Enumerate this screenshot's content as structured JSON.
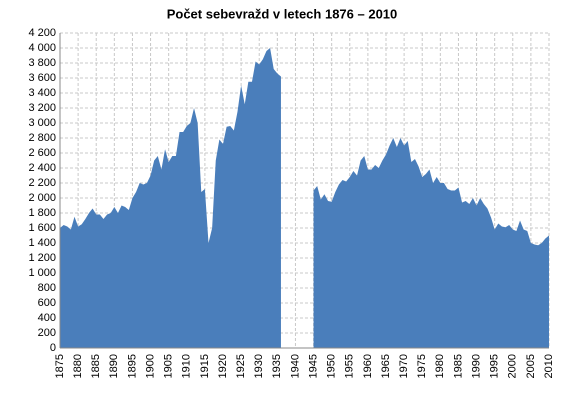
{
  "chart_data": {
    "type": "area",
    "title": "Počet sebevražd v letech 1876  – 2010",
    "color": "#4a7ebb",
    "grid": true,
    "x": [
      1875,
      1876,
      1877,
      1878,
      1879,
      1880,
      1881,
      1882,
      1883,
      1884,
      1885,
      1886,
      1887,
      1888,
      1889,
      1890,
      1891,
      1892,
      1893,
      1894,
      1895,
      1896,
      1897,
      1898,
      1899,
      1900,
      1901,
      1902,
      1903,
      1904,
      1905,
      1906,
      1907,
      1908,
      1909,
      1910,
      1911,
      1912,
      1913,
      1914,
      1915,
      1916,
      1917,
      1918,
      1919,
      1920,
      1921,
      1922,
      1923,
      1924,
      1925,
      1926,
      1927,
      1928,
      1929,
      1930,
      1931,
      1932,
      1933,
      1934,
      1935,
      1936,
      1937,
      1938,
      1939,
      1940,
      1941,
      1942,
      1943,
      1944,
      1945,
      1946,
      1947,
      1948,
      1949,
      1950,
      1951,
      1952,
      1953,
      1954,
      1955,
      1956,
      1957,
      1958,
      1959,
      1960,
      1961,
      1962,
      1963,
      1964,
      1965,
      1966,
      1967,
      1968,
      1969,
      1970,
      1971,
      1972,
      1973,
      1974,
      1975,
      1976,
      1977,
      1978,
      1979,
      1980,
      1981,
      1982,
      1983,
      1984,
      1985,
      1986,
      1987,
      1988,
      1989,
      1990,
      1991,
      1992,
      1993,
      1994,
      1995,
      1996,
      1997,
      1998,
      1999,
      2000,
      2001,
      2002,
      2003,
      2004,
      2005,
      2006,
      2007,
      2008,
      2009,
      2010
    ],
    "values": [
      1600,
      1640,
      1620,
      1580,
      1750,
      1620,
      1650,
      1720,
      1800,
      1860,
      1780,
      1780,
      1720,
      1780,
      1800,
      1880,
      1800,
      1900,
      1880,
      1840,
      2000,
      2080,
      2200,
      2180,
      2200,
      2300,
      2500,
      2560,
      2380,
      2650,
      2480,
      2560,
      2560,
      2880,
      2880,
      2960,
      3000,
      3200,
      3000,
      2080,
      2120,
      1400,
      1600,
      2500,
      2780,
      2720,
      2950,
      2960,
      2900,
      3150,
      3500,
      3250,
      3550,
      3550,
      3820,
      3780,
      3850,
      3960,
      4000,
      3720,
      3660,
      3620,
      null,
      null,
      null,
      null,
      null,
      null,
      null,
      null,
      2100,
      2160,
      1980,
      2050,
      1960,
      1950,
      2080,
      2180,
      2240,
      2220,
      2280,
      2360,
      2300,
      2500,
      2560,
      2380,
      2380,
      2440,
      2400,
      2500,
      2580,
      2700,
      2800,
      2680,
      2800,
      2700,
      2760,
      2480,
      2520,
      2420,
      2280,
      2320,
      2380,
      2200,
      2280,
      2200,
      2200,
      2120,
      2100,
      2100,
      2140,
      1940,
      1960,
      1920,
      2000,
      1900,
      2000,
      1920,
      1860,
      1740,
      1580,
      1660,
      1620,
      1610,
      1640,
      1580,
      1560,
      1700,
      1580,
      1560,
      1400,
      1380,
      1370,
      1400,
      1460,
      1500
    ],
    "xlim": [
      1875,
      2010
    ],
    "xticks": [
      1875,
      1880,
      1885,
      1890,
      1895,
      1900,
      1905,
      1910,
      1915,
      1920,
      1925,
      1930,
      1935,
      1940,
      1945,
      1950,
      1955,
      1960,
      1965,
      1970,
      1975,
      1980,
      1985,
      1990,
      1995,
      2000,
      2005,
      2010
    ],
    "ylim": [
      0,
      4200
    ],
    "yticks": [
      0,
      200,
      400,
      600,
      800,
      {
        "value": 1000,
        "label": "1 000"
      },
      {
        "value": 1200,
        "label": "1 200"
      },
      {
        "value": 1400,
        "label": "1 400"
      },
      {
        "value": 1600,
        "label": "1 600"
      },
      {
        "value": 1800,
        "label": "1 800"
      },
      {
        "value": 2000,
        "label": "2 000"
      },
      {
        "value": 2200,
        "label": "2 200"
      },
      {
        "value": 2400,
        "label": "2 400"
      },
      {
        "value": 2600,
        "label": "2 600"
      },
      {
        "value": 2800,
        "label": "2 800"
      },
      {
        "value": 3000,
        "label": "3 000"
      },
      {
        "value": 3200,
        "label": "3 200"
      },
      {
        "value": 3400,
        "label": "3 400"
      },
      {
        "value": 3600,
        "label": "3 600"
      },
      {
        "value": 3800,
        "label": "3 800"
      },
      {
        "value": 4000,
        "label": "4 000"
      },
      {
        "value": 4200,
        "label": "4 200"
      }
    ]
  }
}
